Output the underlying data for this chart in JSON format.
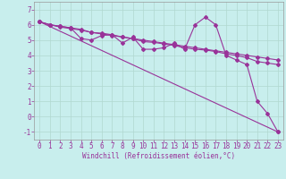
{
  "bg_color": "#c8eeed",
  "grid_color": "#b0d8d0",
  "line_color": "#993399",
  "xlabel": "Windchill (Refroidissement éolien,°C)",
  "xlim": [
    -0.5,
    23.5
  ],
  "ylim": [
    -1.5,
    7.5
  ],
  "xticks": [
    0,
    1,
    2,
    3,
    4,
    5,
    6,
    7,
    8,
    9,
    10,
    11,
    12,
    13,
    14,
    15,
    16,
    17,
    18,
    19,
    20,
    21,
    22,
    23
  ],
  "yticks": [
    -1,
    0,
    1,
    2,
    3,
    4,
    5,
    6,
    7
  ],
  "line1_x": [
    0,
    1,
    2,
    3,
    4,
    5,
    6,
    7,
    8,
    9,
    10,
    11,
    12,
    13,
    14,
    15,
    16,
    17,
    18,
    19,
    20,
    21,
    22,
    23
  ],
  "line1_y": [
    6.2,
    6.0,
    5.9,
    5.8,
    5.7,
    5.5,
    5.4,
    5.3,
    5.2,
    5.1,
    5.0,
    4.9,
    4.8,
    4.7,
    4.6,
    4.5,
    4.4,
    4.3,
    4.2,
    4.1,
    4.0,
    3.9,
    3.8,
    3.7
  ],
  "line2_x": [
    0,
    1,
    2,
    3,
    4,
    5,
    6,
    7,
    8,
    9,
    10,
    11,
    12,
    13,
    14,
    15,
    16,
    17,
    18,
    19,
    20,
    21,
    22,
    23
  ],
  "line2_y": [
    6.2,
    6.0,
    5.85,
    5.75,
    5.65,
    5.5,
    5.45,
    5.35,
    5.2,
    5.1,
    4.9,
    4.85,
    4.75,
    4.65,
    4.5,
    4.4,
    4.35,
    4.25,
    4.1,
    4.0,
    3.85,
    3.6,
    3.5,
    3.4
  ],
  "line3_x": [
    0,
    1,
    2,
    3,
    4,
    5,
    6,
    7,
    8,
    9,
    10,
    11,
    12,
    13,
    14,
    15,
    16,
    17,
    18,
    19,
    20,
    21,
    22,
    23
  ],
  "line3_y": [
    6.2,
    6.0,
    5.9,
    5.8,
    5.1,
    5.0,
    5.3,
    5.35,
    4.8,
    5.2,
    4.4,
    4.4,
    4.5,
    4.8,
    4.4,
    6.0,
    6.5,
    6.0,
    4.0,
    3.7,
    3.4,
    1.0,
    0.2,
    -1.0
  ],
  "line4_x": [
    0,
    23
  ],
  "line4_y": [
    6.2,
    -1.0
  ],
  "xlabel_fontsize": 5.5,
  "tick_fontsize": 5.5
}
